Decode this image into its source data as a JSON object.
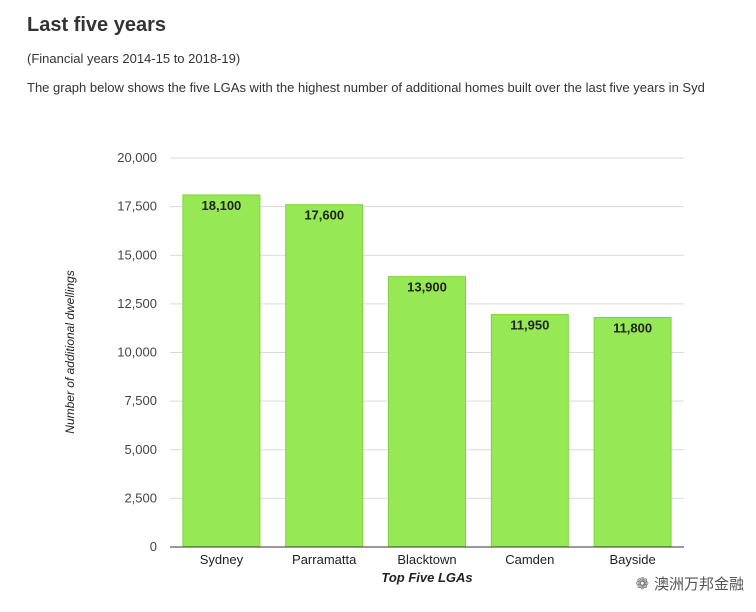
{
  "page": {
    "heading": "Last five years",
    "subheading": "(Financial years 2014-15 to 2018-19)",
    "description": "The graph below shows the five LGAs with the highest number of additional homes built over the last five years in Syd"
  },
  "chart_data": {
    "type": "bar",
    "categories": [
      "Sydney",
      "Parramatta",
      "Blacktown",
      "Camden",
      "Bayside"
    ],
    "values": [
      18100,
      17600,
      13900,
      11950,
      11800
    ],
    "value_labels": [
      "18,100",
      "17,600",
      "13,900",
      "11,950",
      "11,800"
    ],
    "xlabel": "Top Five LGAs",
    "ylabel": "Number of additional dwellings",
    "ylim": [
      0,
      20000
    ],
    "yticks": [
      0,
      2500,
      5000,
      7500,
      10000,
      12500,
      15000,
      17500,
      20000
    ],
    "ytick_labels": [
      "0",
      "2,500",
      "5,000",
      "7,500",
      "10,000",
      "12,500",
      "15,000",
      "17,500",
      "20,000"
    ],
    "grid": true,
    "bar_color": "#96e955",
    "bar_edge_color": "#7fd23a"
  },
  "watermark": {
    "text": "澳洲万邦金融",
    "icon": "wechat-icon"
  }
}
